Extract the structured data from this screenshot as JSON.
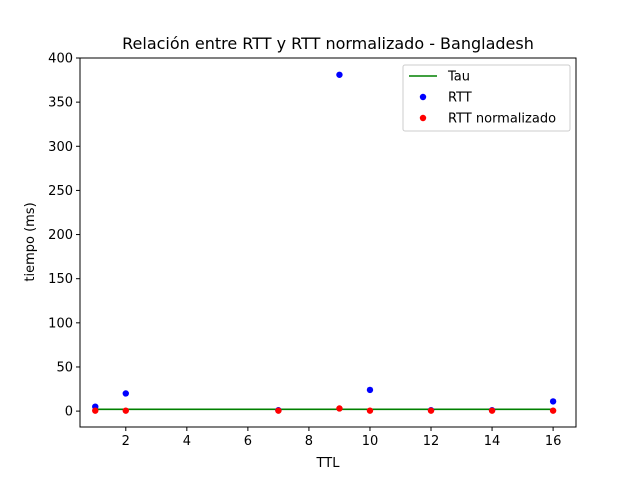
{
  "chart_data": {
    "type": "scatter",
    "title": "Relación entre RTT y RTT normalizado - Bangladesh",
    "xlabel": "TTL",
    "ylabel": "tiempo (ms)",
    "xlim": [
      0.5,
      16.75
    ],
    "ylim": [
      -18,
      400
    ],
    "xticks": [
      2,
      4,
      6,
      8,
      10,
      12,
      14,
      16
    ],
    "yticks": [
      0,
      50,
      100,
      150,
      200,
      250,
      300,
      350,
      400
    ],
    "grid": false,
    "legend_position": "top-right",
    "series": [
      {
        "name": "Tau",
        "kind": "line",
        "color": "#008000",
        "x": [
          1,
          16
        ],
        "y": [
          2,
          2
        ]
      },
      {
        "name": "RTT",
        "kind": "scatter",
        "color": "#0000ff",
        "x": [
          1,
          2,
          7,
          9,
          10,
          12,
          14,
          16
        ],
        "y": [
          5,
          20,
          1,
          381,
          24,
          1,
          1,
          11
        ]
      },
      {
        "name": "RTT normalizado",
        "kind": "scatter",
        "color": "#ff0000",
        "x": [
          1,
          2,
          7,
          9,
          10,
          12,
          14,
          16
        ],
        "y": [
          0.5,
          0.5,
          0.5,
          3,
          0.5,
          0.5,
          0.5,
          0.5
        ]
      }
    ]
  }
}
